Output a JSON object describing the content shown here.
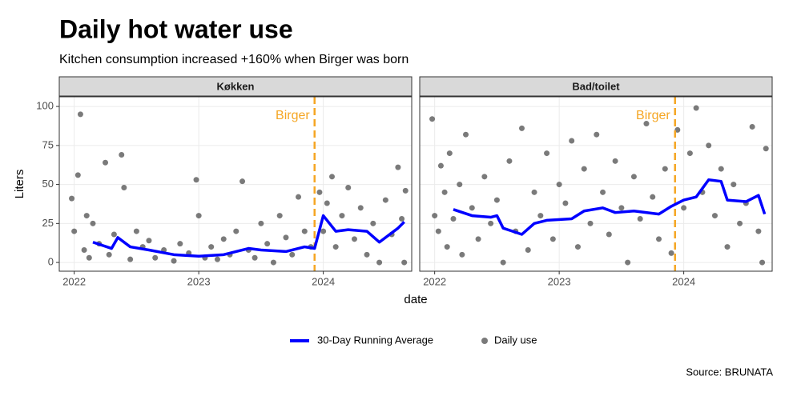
{
  "header": {
    "title": "Daily hot water use",
    "subtitle": "Kitchen consumption increased +160% when Birger was born"
  },
  "axes": {
    "x": "date",
    "y": "Liters"
  },
  "caption": "Source: BRUNATA",
  "chart_data": [
    {
      "type": "scatter",
      "title": "Køkken",
      "xlim": [
        2021.88,
        2024.71
      ],
      "xticks": [
        2022,
        2023,
        2024
      ],
      "ylim": [
        -5.6,
        106.2
      ],
      "yticks": [
        0,
        25,
        50,
        75,
        100
      ],
      "grid": true,
      "annotation": {
        "label": "Birger",
        "x": 2023.93,
        "color": "#f5a623"
      },
      "series": [
        {
          "name": "30-Day Running Average",
          "color": "#0000ff",
          "x": [
            2022.15,
            2022.3,
            2022.35,
            2022.45,
            2022.6,
            2022.8,
            2023.0,
            2023.2,
            2023.4,
            2023.5,
            2023.7,
            2023.85,
            2023.93,
            2024.0,
            2024.1,
            2024.2,
            2024.35,
            2024.45,
            2024.6,
            2024.65
          ],
          "values": [
            13,
            9,
            16,
            10,
            8,
            5,
            4,
            5,
            9,
            8,
            7,
            10,
            9,
            30,
            20,
            21,
            20,
            13,
            22,
            26
          ]
        },
        {
          "name": "Daily use",
          "color": "#4d4d4d",
          "x": [
            2021.98,
            2022.0,
            2022.03,
            2022.05,
            2022.08,
            2022.1,
            2022.12,
            2022.15,
            2022.2,
            2022.25,
            2022.28,
            2022.32,
            2022.38,
            2022.4,
            2022.45,
            2022.5,
            2022.55,
            2022.6,
            2022.65,
            2022.72,
            2022.8,
            2022.85,
            2022.92,
            2022.98,
            2023.0,
            2023.05,
            2023.1,
            2023.15,
            2023.2,
            2023.25,
            2023.3,
            2023.35,
            2023.4,
            2023.45,
            2023.5,
            2023.55,
            2023.6,
            2023.65,
            2023.7,
            2023.75,
            2023.8,
            2023.85,
            2023.9,
            2023.97,
            2024.0,
            2024.03,
            2024.07,
            2024.1,
            2024.15,
            2024.2,
            2024.25,
            2024.3,
            2024.35,
            2024.4,
            2024.45,
            2024.5,
            2024.55,
            2024.6,
            2024.63,
            2024.65,
            2024.66
          ],
          "values": [
            41,
            20,
            56,
            95,
            8,
            30,
            3,
            25,
            12,
            64,
            5,
            18,
            69,
            48,
            2,
            20,
            10,
            14,
            3,
            8,
            1,
            12,
            6,
            53,
            30,
            3,
            10,
            2,
            15,
            5,
            20,
            52,
            8,
            3,
            25,
            12,
            0,
            30,
            16,
            5,
            42,
            20,
            10,
            45,
            20,
            38,
            55,
            10,
            30,
            48,
            15,
            35,
            5,
            25,
            0,
            40,
            18,
            61,
            28,
            0,
            46
          ]
        }
      ]
    },
    {
      "type": "scatter",
      "title": "Bad/toilet",
      "xlim": [
        2021.88,
        2024.71
      ],
      "xticks": [
        2022,
        2023,
        2024
      ],
      "ylim": [
        -5.6,
        106.2
      ],
      "yticks": [
        0,
        25,
        50,
        75,
        100
      ],
      "grid": true,
      "annotation": {
        "label": "Birger",
        "x": 2023.93,
        "color": "#f5a623"
      },
      "series": [
        {
          "name": "30-Day Running Average",
          "color": "#0000ff",
          "x": [
            2022.15,
            2022.3,
            2022.45,
            2022.5,
            2022.55,
            2022.7,
            2022.8,
            2022.9,
            2023.1,
            2023.2,
            2023.35,
            2023.45,
            2023.6,
            2023.8,
            2023.9,
            2024.0,
            2024.1,
            2024.2,
            2024.3,
            2024.35,
            2024.5,
            2024.6,
            2024.65
          ],
          "values": [
            34,
            30,
            29,
            30,
            22,
            18,
            25,
            27,
            28,
            33,
            35,
            32,
            33,
            31,
            36,
            40,
            42,
            53,
            52,
            40,
            39,
            43,
            31
          ]
        },
        {
          "name": "Daily use",
          "color": "#4d4d4d",
          "x": [
            2021.98,
            2022.0,
            2022.03,
            2022.05,
            2022.08,
            2022.1,
            2022.12,
            2022.15,
            2022.2,
            2022.22,
            2022.25,
            2022.3,
            2022.35,
            2022.4,
            2022.45,
            2022.5,
            2022.55,
            2022.6,
            2022.65,
            2022.7,
            2022.75,
            2022.8,
            2022.85,
            2022.9,
            2022.95,
            2023.0,
            2023.05,
            2023.1,
            2023.15,
            2023.2,
            2023.25,
            2023.3,
            2023.35,
            2023.4,
            2023.45,
            2023.5,
            2023.55,
            2023.6,
            2023.65,
            2023.7,
            2023.75,
            2023.8,
            2023.85,
            2023.9,
            2023.95,
            2024.0,
            2024.05,
            2024.1,
            2024.15,
            2024.2,
            2024.25,
            2024.3,
            2024.35,
            2024.4,
            2024.45,
            2024.5,
            2024.55,
            2024.6,
            2024.63,
            2024.66
          ],
          "values": [
            92,
            30,
            20,
            62,
            45,
            10,
            70,
            28,
            50,
            5,
            82,
            35,
            15,
            55,
            25,
            40,
            0,
            65,
            20,
            86,
            8,
            45,
            30,
            70,
            15,
            50,
            38,
            78,
            10,
            60,
            25,
            82,
            45,
            18,
            65,
            35,
            0,
            55,
            28,
            89,
            42,
            15,
            60,
            6,
            85,
            35,
            70,
            99,
            45,
            75,
            30,
            60,
            10,
            50,
            25,
            38,
            87,
            20,
            0,
            73
          ]
        }
      ]
    }
  ]
}
